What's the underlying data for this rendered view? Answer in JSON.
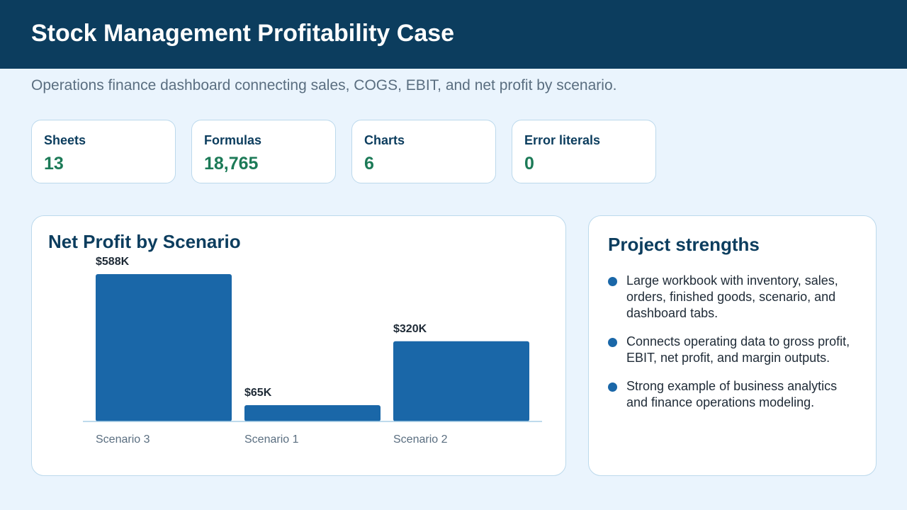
{
  "header": {
    "title": "Stock Management Profitability Case"
  },
  "subtitle": "Operations finance dashboard connecting sales, COGS, EBIT, and net profit by scenario.",
  "metrics": [
    {
      "label": "Sheets",
      "value": "13"
    },
    {
      "label": "Formulas",
      "value": "18,765"
    },
    {
      "label": "Charts",
      "value": "6"
    },
    {
      "label": "Error literals",
      "value": "0"
    }
  ],
  "chart_data": {
    "type": "bar",
    "title": "Net Profit by Scenario",
    "categories": [
      "Scenario 3",
      "Scenario 1",
      "Scenario 2"
    ],
    "values": [
      588000,
      65000,
      320000
    ],
    "value_labels": [
      "$588K",
      "$65K",
      "$320K"
    ],
    "ylim": [
      0,
      588000
    ],
    "grid": false,
    "bar_color": "#1a67a8"
  },
  "strengths": {
    "title": "Project strengths",
    "items": [
      "Large workbook with inventory, sales, orders, finished goods, scenario, and dashboard tabs.",
      "Connects operating data to gross profit, EBIT, net profit, and margin outputs.",
      "Strong example of business analytics and finance operations modeling."
    ]
  },
  "colors": {
    "header_bg": "#0c3d5e",
    "page_bg": "#eaf4fd",
    "accent_value": "#1c7a57",
    "bar": "#1a67a8"
  }
}
